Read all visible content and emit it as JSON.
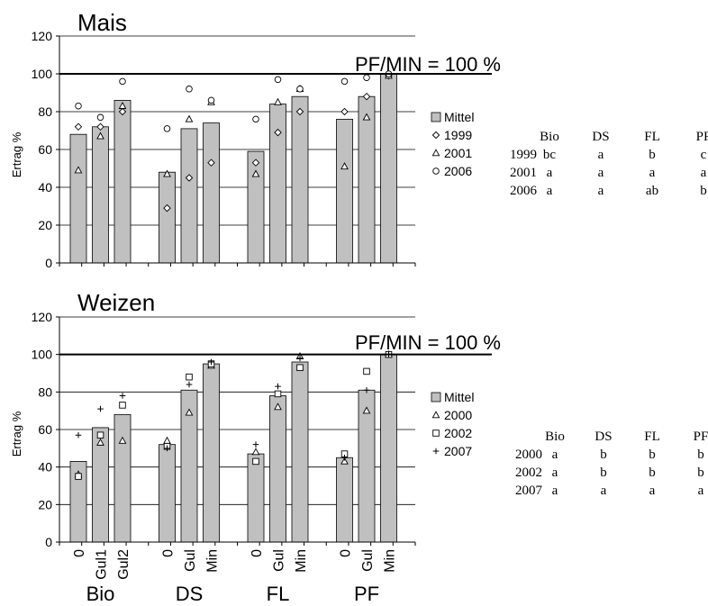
{
  "chart_data": [
    {
      "type": "bar",
      "title": "Mais",
      "ylabel": "Ertrag %",
      "ylim": [
        0,
        120
      ],
      "yticks": [
        0,
        20,
        40,
        60,
        80,
        100,
        120
      ],
      "grid": true,
      "legend_position": "right",
      "reference_line": {
        "value": 100,
        "label": "PF/MIN = 100 %"
      },
      "groups": [
        {
          "name": "",
          "categories": [
            "",
            "",
            ""
          ]
        },
        {
          "name": "",
          "categories": [
            "",
            "",
            ""
          ]
        },
        {
          "name": "",
          "categories": [
            "",
            "",
            ""
          ]
        },
        {
          "name": "",
          "categories": [
            "",
            "",
            ""
          ]
        }
      ],
      "series": [
        {
          "name": "Mittel",
          "kind": "bar",
          "marker": "bar",
          "values": [
            68,
            72,
            86,
            48,
            71,
            74,
            59,
            84,
            88,
            76,
            88,
            100
          ]
        },
        {
          "name": "1999",
          "kind": "scatter",
          "marker": "diamond",
          "values": [
            72,
            72,
            80,
            29,
            45,
            53,
            53,
            69,
            80,
            80,
            88,
            99
          ]
        },
        {
          "name": "2001",
          "kind": "scatter",
          "marker": "triangle",
          "values": [
            49,
            67,
            83,
            47,
            76,
            85,
            47,
            85,
            92,
            51,
            77,
            99
          ]
        },
        {
          "name": "2006",
          "kind": "scatter",
          "marker": "circle",
          "values": [
            83,
            77,
            96,
            71,
            92,
            86,
            76,
            97,
            92,
            96,
            98,
            100
          ]
        }
      ],
      "significance_table": {
        "columns": [
          "Bio",
          "DS",
          "FL",
          "PF"
        ],
        "rows": [
          {
            "label": "1999",
            "cells": [
              "bc",
              "a",
              "b",
              "c"
            ]
          },
          {
            "label": "2001",
            "cells": [
              "a",
              "a",
              "a",
              "a"
            ]
          },
          {
            "label": "2006",
            "cells": [
              "a",
              "a",
              "ab",
              "b"
            ]
          }
        ]
      }
    },
    {
      "type": "bar",
      "title": "Weizen",
      "ylabel": "Ertrag %",
      "ylim": [
        0,
        120
      ],
      "yticks": [
        0,
        20,
        40,
        60,
        80,
        100,
        120
      ],
      "grid": true,
      "legend_position": "right",
      "reference_line": {
        "value": 100,
        "label": "PF/MIN = 100 %"
      },
      "groups": [
        {
          "name": "Bio",
          "categories": [
            "0",
            "Gul1",
            "Gul2"
          ]
        },
        {
          "name": "DS",
          "categories": [
            "0",
            "Gul",
            "Min"
          ]
        },
        {
          "name": "FL",
          "categories": [
            "0",
            "Gul",
            "Min"
          ]
        },
        {
          "name": "PF",
          "categories": [
            "0",
            "Gul",
            "Min"
          ]
        }
      ],
      "series": [
        {
          "name": "Mittel",
          "kind": "bar",
          "marker": "bar",
          "values": [
            43,
            61,
            68,
            52,
            81,
            95,
            47,
            78,
            96,
            45,
            81,
            100
          ]
        },
        {
          "name": "2000",
          "kind": "scatter",
          "marker": "triangle",
          "values": [
            36,
            53,
            54,
            54,
            69,
            94,
            48,
            72,
            99,
            43,
            70,
            100
          ]
        },
        {
          "name": "2002",
          "kind": "scatter",
          "marker": "square",
          "values": [
            35,
            57,
            73,
            51,
            88,
            95,
            43,
            79,
            93,
            47,
            91,
            100
          ]
        },
        {
          "name": "2007",
          "kind": "scatter",
          "marker": "plus",
          "values": [
            57,
            71,
            78,
            50,
            84,
            96,
            52,
            83,
            98,
            45,
            81,
            100
          ]
        }
      ],
      "significance_table": {
        "columns": [
          "Bio",
          "DS",
          "FL",
          "PF"
        ],
        "rows": [
          {
            "label": "2000",
            "cells": [
              "a",
              "b",
              "b",
              "b"
            ]
          },
          {
            "label": "2002",
            "cells": [
              "a",
              "b",
              "b",
              "b"
            ]
          },
          {
            "label": "2007",
            "cells": [
              "a",
              "a",
              "a",
              "a"
            ]
          }
        ]
      }
    }
  ]
}
